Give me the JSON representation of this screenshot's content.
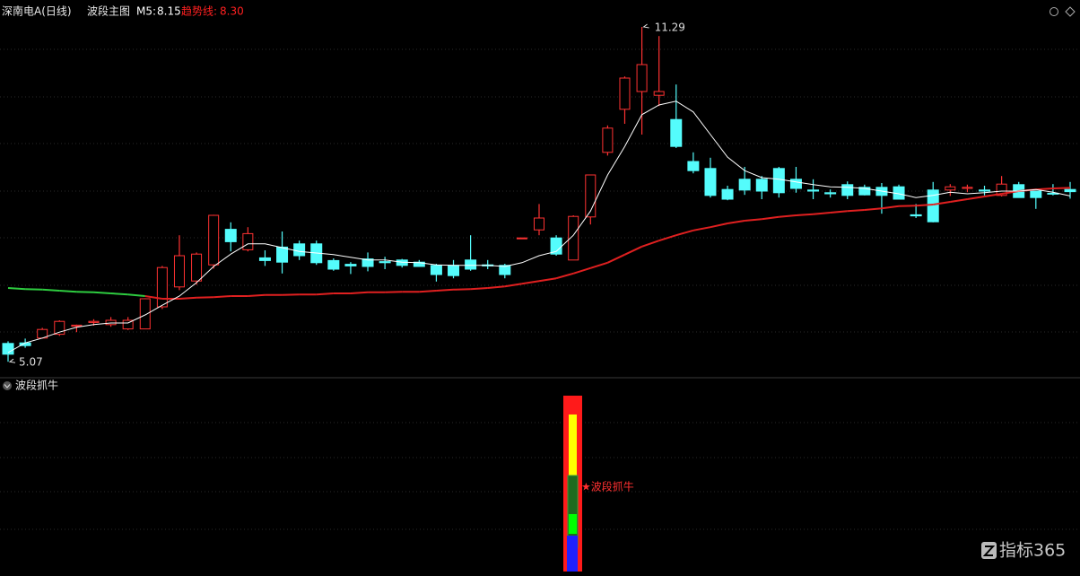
{
  "chart_data": {
    "type": "candlestick",
    "title": "深南电A(日线)",
    "subtitle": "波段主图",
    "ylim": [
      4.79,
      11.79
    ],
    "up_color": "#ff3232",
    "down_color": "#54fcfc",
    "ohlc": [
      [
        5.41,
        5.45,
        5.07,
        5.21
      ],
      [
        5.42,
        5.5,
        5.33,
        5.37
      ],
      [
        5.51,
        5.7,
        5.5,
        5.67
      ],
      [
        5.58,
        5.84,
        5.55,
        5.82
      ],
      [
        5.73,
        5.76,
        5.62,
        5.75
      ],
      [
        5.8,
        5.86,
        5.74,
        5.82
      ],
      [
        5.76,
        5.9,
        5.72,
        5.84
      ],
      [
        5.68,
        5.9,
        5.66,
        5.84
      ],
      [
        5.68,
        6.25,
        5.68,
        6.24
      ],
      [
        6.09,
        6.85,
        6.05,
        6.82
      ],
      [
        6.46,
        7.42,
        6.4,
        7.04
      ],
      [
        6.57,
        7.1,
        6.5,
        7.07
      ],
      [
        6.87,
        7.8,
        6.8,
        7.79
      ],
      [
        7.53,
        7.66,
        7.12,
        7.3
      ],
      [
        7.15,
        7.57,
        7.12,
        7.45
      ],
      [
        7.0,
        7.14,
        6.85,
        6.95
      ],
      [
        7.2,
        7.49,
        6.71,
        6.92
      ],
      [
        7.26,
        7.32,
        6.96,
        7.04
      ],
      [
        7.26,
        7.32,
        6.87,
        6.91
      ],
      [
        6.95,
        6.99,
        6.76,
        6.79
      ],
      [
        6.88,
        6.92,
        6.7,
        6.85
      ],
      [
        6.98,
        7.1,
        6.75,
        6.84
      ],
      [
        6.93,
        7.02,
        6.79,
        6.91
      ],
      [
        6.96,
        6.98,
        6.82,
        6.86
      ],
      [
        6.92,
        6.96,
        6.84,
        6.84
      ],
      [
        6.86,
        6.89,
        6.56,
        6.69
      ],
      [
        6.86,
        6.96,
        6.62,
        6.67
      ],
      [
        6.96,
        7.42,
        6.76,
        6.79
      ],
      [
        6.87,
        6.96,
        6.79,
        6.85
      ],
      [
        6.86,
        6.89,
        6.62,
        6.69
      ],
      [
        7.37,
        7.37,
        7.37,
        7.37
      ],
      [
        7.52,
        8.0,
        7.42,
        7.74
      ],
      [
        7.37,
        7.42,
        7.04,
        7.07
      ],
      [
        6.96,
        7.79,
        6.96,
        7.77
      ],
      [
        7.76,
        8.54,
        7.62,
        8.54
      ],
      [
        8.96,
        9.46,
        8.9,
        9.41
      ],
      [
        9.76,
        10.37,
        9.49,
        10.34
      ],
      [
        10.09,
        11.29,
        9.29,
        10.59
      ],
      [
        10.02,
        11.12,
        9.82,
        10.09
      ],
      [
        9.57,
        10.22,
        9.04,
        9.07
      ],
      [
        8.79,
        8.96,
        8.57,
        8.62
      ],
      [
        8.66,
        8.86,
        8.12,
        8.16
      ],
      [
        8.27,
        8.34,
        8.07,
        8.09
      ],
      [
        8.46,
        8.69,
        8.17,
        8.26
      ],
      [
        8.46,
        8.52,
        8.09,
        8.24
      ],
      [
        8.66,
        8.69,
        8.12,
        8.21
      ],
      [
        8.46,
        8.69,
        8.21,
        8.29
      ],
      [
        8.26,
        8.46,
        8.09,
        8.24
      ],
      [
        8.21,
        8.27,
        8.12,
        8.19
      ],
      [
        8.36,
        8.42,
        8.09,
        8.16
      ],
      [
        8.31,
        8.36,
        8.16,
        8.17
      ],
      [
        8.31,
        8.39,
        7.82,
        8.16
      ],
      [
        8.32,
        8.36,
        8.1,
        8.09
      ],
      [
        7.8,
        8.0,
        7.74,
        7.78
      ],
      [
        8.26,
        8.41,
        7.66,
        7.67
      ],
      [
        8.26,
        8.37,
        8.15,
        8.32
      ],
      [
        8.29,
        8.36,
        8.22,
        8.31
      ],
      [
        8.26,
        8.34,
        8.16,
        8.24
      ],
      [
        8.16,
        8.52,
        8.14,
        8.37
      ],
      [
        8.36,
        8.41,
        8.12,
        8.12
      ],
      [
        8.24,
        8.24,
        7.91,
        8.12
      ],
      [
        8.2,
        8.37,
        8.16,
        8.19
      ],
      [
        8.27,
        8.41,
        8.1,
        8.23
      ]
    ],
    "series": [
      {
        "name": "M5:",
        "color": "#ffffff",
        "legend_value": 8.15,
        "values": [
          5.24,
          5.42,
          5.51,
          5.62,
          5.71,
          5.76,
          5.79,
          5.79,
          5.94,
          6.12,
          6.29,
          6.54,
          6.84,
          7.07,
          7.26,
          7.26,
          7.19,
          7.12,
          7.09,
          7.06,
          7.01,
          6.96,
          6.96,
          6.92,
          6.91,
          6.87,
          6.86,
          6.86,
          6.86,
          6.84,
          6.91,
          7.04,
          7.12,
          7.42,
          7.87,
          8.54,
          9.07,
          9.66,
          9.84,
          9.91,
          9.71,
          9.29,
          8.87,
          8.62,
          8.49,
          8.46,
          8.41,
          8.36,
          8.32,
          8.31,
          8.29,
          8.24,
          8.19,
          8.12,
          8.16,
          8.22,
          8.19,
          8.21,
          8.24,
          8.24,
          8.27,
          8.22,
          8.15
        ]
      },
      {
        "name": "趋势线:",
        "color": "#ff2020",
        "legend_value": {
          "value": 8.3,
          "label": "8.30"
        },
        "values": [
          6.44,
          6.42,
          6.41,
          6.39,
          6.37,
          6.36,
          6.34,
          6.32,
          6.29,
          6.24,
          6.24,
          6.26,
          6.27,
          6.29,
          6.29,
          6.31,
          6.31,
          6.32,
          6.32,
          6.34,
          6.34,
          6.36,
          6.36,
          6.37,
          6.37,
          6.39,
          6.41,
          6.42,
          6.44,
          6.47,
          6.52,
          6.57,
          6.62,
          6.71,
          6.81,
          6.91,
          7.06,
          7.21,
          7.32,
          7.42,
          7.51,
          7.57,
          7.64,
          7.69,
          7.72,
          7.76,
          7.79,
          7.81,
          7.84,
          7.87,
          7.89,
          7.92,
          7.96,
          7.97,
          7.99,
          8.04,
          8.09,
          8.14,
          8.19,
          8.24,
          8.27,
          8.29,
          8.3
        ],
        "colors": [
          "#2ecc40",
          "#2ecc40",
          "#2ecc40",
          "#2ecc40",
          "#2ecc40",
          "#2ecc40",
          "#2ecc40",
          "#2ecc40",
          "#2ecc40",
          "#e02020",
          "#e02020",
          "#e02020",
          "#e02020",
          "#e02020",
          "#e02020",
          "#e02020",
          "#e02020",
          "#e02020",
          "#e02020",
          "#e02020",
          "#e02020",
          "#e02020",
          "#e02020",
          "#e02020",
          "#e02020",
          "#e02020",
          "#e02020",
          "#e02020",
          "#e02020",
          "#e02020",
          "#e02020",
          "#e02020",
          "#e02020",
          "#e02020",
          "#e02020",
          "#e02020",
          "#e02020",
          "#e02020",
          "#e02020",
          "#e02020",
          "#e02020",
          "#e02020",
          "#e02020",
          "#e02020",
          "#e02020",
          "#e02020",
          "#e02020",
          "#e02020",
          "#e02020",
          "#e02020",
          "#e02020",
          "#e02020",
          "#e02020",
          "#e02020",
          "#e02020",
          "#e02020",
          "#e02020",
          "#e02020",
          "#e02020",
          "#e02020",
          "#e02020",
          "#e02020",
          "#e02020"
        ]
      }
    ],
    "annotations": {
      "high": 11.29,
      "low": 5.07
    },
    "indicator": {
      "title": "波段抓牛",
      "signal_label": "★波段抓牛"
    },
    "watermark": "指标365"
  }
}
